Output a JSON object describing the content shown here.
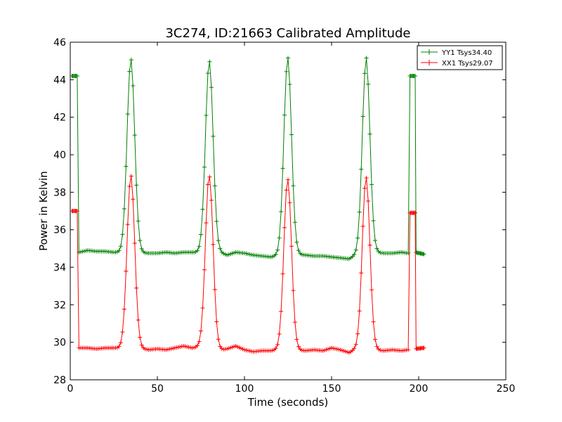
{
  "chart_data": {
    "type": "line",
    "title": "3C274, ID:21663 Calibrated Amplitude",
    "xlabel": "Time (seconds)",
    "ylabel": "Power in Kelvin",
    "xlim": [
      0,
      250
    ],
    "ylim": [
      28,
      46
    ],
    "xticks": [
      "0",
      "50",
      "100",
      "150",
      "200",
      "250"
    ],
    "yticks": [
      "28",
      "30",
      "32",
      "34",
      "36",
      "38",
      "40",
      "42",
      "44",
      "46"
    ],
    "grid": false,
    "legend_position": "top-right",
    "marker": "+",
    "series": [
      {
        "name": "YY1 Tsys34.40",
        "color": "#008000",
        "baseline_segments": [
          [
            [
              5,
              34.8
            ],
            [
              10,
              34.9
            ],
            [
              15,
              34.85
            ],
            [
              20,
              34.85
            ],
            [
              25,
              34.8
            ],
            [
              28,
              34.8
            ]
          ],
          [
            [
              40,
              34.8
            ],
            [
              45,
              34.75
            ],
            [
              50,
              34.75
            ],
            [
              55,
              34.8
            ],
            [
              60,
              34.75
            ],
            [
              65,
              34.8
            ],
            [
              70,
              34.8
            ],
            [
              73,
              34.8
            ]
          ],
          [
            [
              86,
              34.8
            ],
            [
              90,
              34.65
            ],
            [
              95,
              34.8
            ],
            [
              100,
              34.75
            ],
            [
              105,
              34.65
            ],
            [
              110,
              34.6
            ],
            [
              115,
              34.55
            ],
            [
              118,
              34.6
            ]
          ],
          [
            [
              131,
              34.7
            ],
            [
              135,
              34.65
            ],
            [
              140,
              34.6
            ],
            [
              145,
              34.6
            ],
            [
              150,
              34.55
            ],
            [
              155,
              34.5
            ],
            [
              160,
              34.45
            ],
            [
              163,
              34.6
            ]
          ],
          [
            [
              176,
              34.8
            ],
            [
              180,
              34.75
            ],
            [
              185,
              34.75
            ],
            [
              190,
              34.8
            ],
            [
              194,
              34.75
            ]
          ],
          [
            [
              198,
              34.8
            ],
            [
              203,
              34.7
            ]
          ]
        ],
        "peaks": [
          {
            "time": 34.8,
            "value": 45.1
          },
          {
            "time": 79.8,
            "value": 45.0
          },
          {
            "time": 124.8,
            "value": 45.1
          },
          {
            "time": 169.8,
            "value": 45.0
          }
        ],
        "spikes": [
          {
            "start": 1,
            "end": 4,
            "value": 44.2
          },
          {
            "start": 195,
            "end": 198,
            "value": 44.2
          }
        ]
      },
      {
        "name": "XX1 Tsys29.07",
        "color": "#ff0000",
        "baseline_segments": [
          [
            [
              5,
              29.7
            ],
            [
              10,
              29.7
            ],
            [
              15,
              29.65
            ],
            [
              20,
              29.7
            ],
            [
              25,
              29.7
            ],
            [
              28,
              29.7
            ]
          ],
          [
            [
              40,
              29.7
            ],
            [
              45,
              29.6
            ],
            [
              50,
              29.65
            ],
            [
              55,
              29.6
            ],
            [
              60,
              29.7
            ],
            [
              65,
              29.8
            ],
            [
              70,
              29.7
            ],
            [
              73,
              29.75
            ]
          ],
          [
            [
              86,
              29.6
            ],
            [
              90,
              29.65
            ],
            [
              95,
              29.8
            ],
            [
              100,
              29.6
            ],
            [
              105,
              29.5
            ],
            [
              110,
              29.55
            ],
            [
              115,
              29.55
            ],
            [
              118,
              29.6
            ]
          ],
          [
            [
              131,
              29.6
            ],
            [
              135,
              29.55
            ],
            [
              140,
              29.6
            ],
            [
              145,
              29.55
            ],
            [
              150,
              29.7
            ],
            [
              155,
              29.6
            ],
            [
              160,
              29.45
            ],
            [
              163,
              29.6
            ]
          ],
          [
            [
              176,
              29.6
            ],
            [
              180,
              29.55
            ],
            [
              185,
              29.6
            ],
            [
              190,
              29.55
            ],
            [
              194,
              29.6
            ]
          ],
          [
            [
              198,
              29.65
            ],
            [
              203,
              29.7
            ]
          ]
        ],
        "peaks": [
          {
            "time": 34.8,
            "value": 38.9
          },
          {
            "time": 79.8,
            "value": 39.0
          },
          {
            "time": 124.8,
            "value": 38.7
          },
          {
            "time": 169.8,
            "value": 38.8
          }
        ],
        "spikes": [
          {
            "start": 1,
            "end": 4,
            "value": 37.0
          },
          {
            "start": 195,
            "end": 198,
            "value": 36.9
          }
        ]
      }
    ]
  }
}
